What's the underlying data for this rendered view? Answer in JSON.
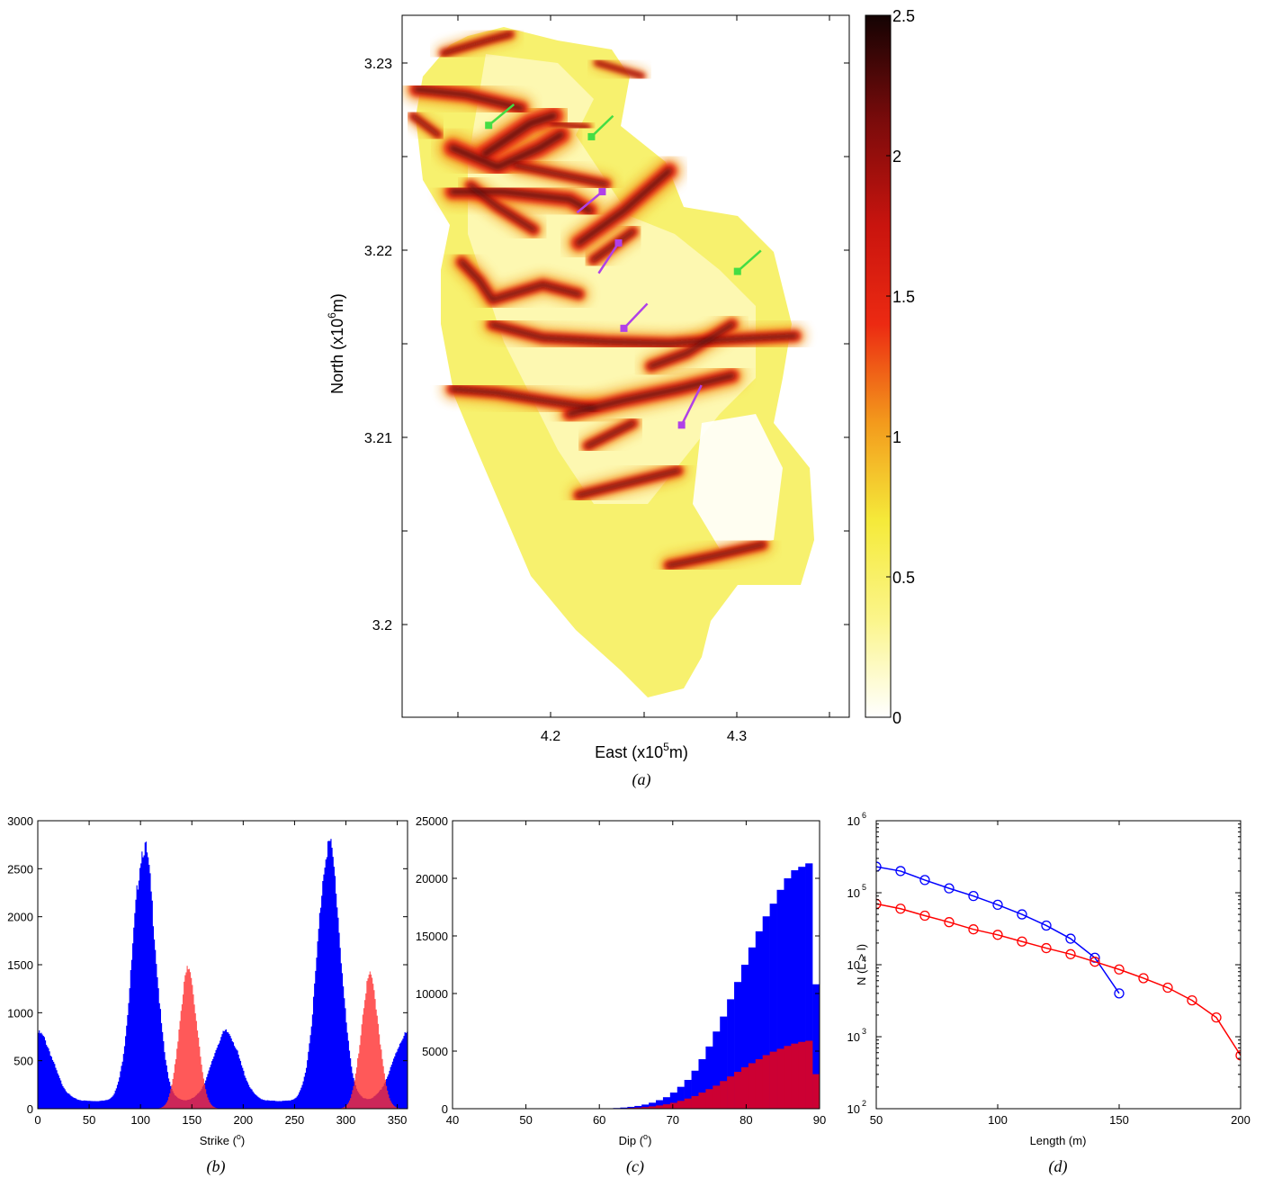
{
  "panel_a": {
    "caption": "(a)",
    "x_tick_labels": [
      "4.2",
      "4.3"
    ],
    "y_tick_labels": [
      "3.23",
      "3.22",
      "3.21",
      "3.2"
    ],
    "xlabel_base": "East (x10",
    "xlabel_exp": "5",
    "xlabel_tail": "m)",
    "ylabel_base": "North (x10",
    "ylabel_exp": "6",
    "ylabel_tail": "m)",
    "colorbar_labels": [
      "2.5",
      "2",
      "1.5",
      "1",
      "0.5",
      "0"
    ],
    "colormap": [
      "#ffffff",
      "#fbf58a",
      "#f5ea3a",
      "#f39a1c",
      "#ec2a12",
      "#c9140e",
      "#7a0b0b",
      "#140303"
    ]
  },
  "panel_b": {
    "caption": "(b)",
    "xlabel": "Strike (",
    "xlabel_unit": "o",
    "xlabel_close": ")",
    "x_tick_labels": [
      "0",
      "50",
      "100",
      "150",
      "200",
      "250",
      "300",
      "350"
    ],
    "y_tick_labels": [
      "0",
      "500",
      "1000",
      "1500",
      "2000",
      "2500",
      "3000"
    ]
  },
  "panel_c": {
    "caption": "(c)",
    "xlabel": "Dip (",
    "xlabel_unit": "o",
    "xlabel_close": ")",
    "x_tick_labels": [
      "40",
      "50",
      "60",
      "70",
      "80",
      "90"
    ],
    "y_tick_labels": [
      "0",
      "5000",
      "10000",
      "15000",
      "20000",
      "25000"
    ]
  },
  "panel_d": {
    "caption": "(d)",
    "xlabel": "Length (m)",
    "ylabel": "N (L > l)",
    "x_tick_labels": [
      "50",
      "100",
      "150",
      "200"
    ],
    "y_tick_base": "10",
    "y_tick_exps": [
      "2",
      "3",
      "4",
      "5",
      "6"
    ]
  },
  "chart_data": [
    {
      "type": "heatmap",
      "panel": "a",
      "xlabel": "East (x10^5m)",
      "ylabel": "North (x10^6m)",
      "xlim": [
        4.112,
        4.36
      ],
      "ylim": [
        3.1955,
        3.2325
      ],
      "colorbar_range": [
        0,
        2.5
      ],
      "colors": {
        "blue": "#0000ff",
        "red": "#ff0000",
        "green_marker": "#44dd44",
        "purple_marker": "#b040e8"
      },
      "lineaments": [
        {
          "x": [
            4.12,
            4.148,
            4.178
          ],
          "y": [
            3.2286,
            3.2283,
            3.2276
          ],
          "w": 1.3
        },
        {
          "x": [
            4.118,
            4.132
          ],
          "y": [
            3.2272,
            3.2262
          ],
          "w": 0.8
        },
        {
          "x": [
            4.135,
            4.16,
            4.172
          ],
          "y": [
            3.2305,
            3.2312,
            3.2315
          ],
          "w": 0.8
        },
        {
          "x": [
            4.158,
            4.183,
            4.196
          ],
          "y": [
            3.2252,
            3.2268,
            3.2272
          ],
          "w": 1.7
        },
        {
          "x": [
            4.14,
            4.165,
            4.188,
            4.2
          ],
          "y": [
            3.2255,
            3.2245,
            3.2255,
            3.2262
          ],
          "w": 1.6
        },
        {
          "x": [
            4.14,
            4.168,
            4.205,
            4.216
          ],
          "y": [
            3.2232,
            3.2232,
            3.2228,
            3.2222
          ],
          "w": 1.4
        },
        {
          "x": [
            4.15,
            4.165,
            4.185
          ],
          "y": [
            3.2235,
            3.2224,
            3.2212
          ],
          "w": 1.1
        },
        {
          "x": [
            4.175,
            4.2,
            4.225
          ],
          "y": [
            3.2246,
            3.2241,
            3.2236
          ],
          "w": 1.0
        },
        {
          "x": [
            4.21,
            4.235,
            4.26
          ],
          "y": [
            3.2205,
            3.2222,
            3.2243
          ],
          "w": 1.4
        },
        {
          "x": [
            4.218,
            4.24
          ],
          "y": [
            3.2196,
            3.2211
          ],
          "w": 1.0
        },
        {
          "x": [
            4.145,
            4.155,
            4.162,
            4.19,
            4.21
          ],
          "y": [
            3.2195,
            3.2185,
            3.2175,
            3.2183,
            3.2178
          ],
          "w": 1.1
        },
        {
          "x": [
            4.162,
            4.19,
            4.225,
            4.26,
            4.29,
            4.33
          ],
          "y": [
            3.2162,
            3.2155,
            3.2153,
            3.2152,
            3.2154,
            3.2156
          ],
          "w": 1.1
        },
        {
          "x": [
            4.25,
            4.27,
            4.295
          ],
          "y": [
            3.214,
            3.2147,
            3.2162
          ],
          "w": 1.1
        },
        {
          "x": [
            4.14,
            4.165,
            4.19,
            4.218
          ],
          "y": [
            3.2128,
            3.2126,
            3.2122,
            3.2118
          ],
          "w": 1.1
        },
        {
          "x": [
            4.205,
            4.235,
            4.265,
            4.295
          ],
          "y": [
            3.2115,
            3.2122,
            3.2128,
            3.2135
          ],
          "w": 1.3
        },
        {
          "x": [
            4.215,
            4.24
          ],
          "y": [
            3.2098,
            3.211
          ],
          "w": 1.0
        },
        {
          "x": [
            4.21,
            4.235,
            4.265
          ],
          "y": [
            3.2072,
            3.2078,
            3.2085
          ],
          "w": 1.0
        },
        {
          "x": [
            4.26,
            4.285,
            4.312
          ],
          "y": [
            3.2035,
            3.204,
            3.2046
          ],
          "w": 1.0
        },
        {
          "x": [
            4.22,
            4.245
          ],
          "y": [
            3.23,
            3.2293
          ],
          "w": 0.6
        },
        {
          "x": [
            4.195,
            4.215
          ],
          "y": [
            3.2268,
            3.2266
          ],
          "w": 0.6
        }
      ],
      "markers": [
        {
          "color": "green",
          "x": 4.16,
          "y": 3.2267,
          "dx": 0.014,
          "dy": 0.0011
        },
        {
          "color": "green",
          "x": 4.217,
          "y": 3.2261,
          "dx": 0.012,
          "dy": 0.0011
        },
        {
          "color": "purple",
          "x": 4.223,
          "y": 3.2232,
          "dx": -0.014,
          "dy": -0.0011
        },
        {
          "color": "purple",
          "x": 4.232,
          "y": 3.2205,
          "dx": -0.011,
          "dy": -0.0016
        },
        {
          "color": "green",
          "x": 4.298,
          "y": 3.219,
          "dx": 0.013,
          "dy": 0.0011
        },
        {
          "color": "purple",
          "x": 4.235,
          "y": 3.216,
          "dx": 0.013,
          "dy": 0.0013
        },
        {
          "color": "purple",
          "x": 4.267,
          "y": 3.2109,
          "dx": 0.011,
          "dy": 0.0021
        }
      ]
    },
    {
      "type": "bar",
      "panel": "b",
      "xlabel": "Strike (o)",
      "xlim": [
        0,
        360
      ],
      "ylim": [
        0,
        3000
      ],
      "series": [
        {
          "color": "#0000ff",
          "peaks": [
            {
              "mu": 103,
              "sigma": 11,
              "amp": 2650
            },
            {
              "mu": 283,
              "sigma": 11,
              "amp": 2680
            },
            {
              "mu": 183,
              "sigma": 13,
              "amp": 720
            },
            {
              "mu": 0,
              "sigma": 14,
              "amp": 710
            },
            {
              "mu": 360,
              "sigma": 14,
              "amp": 710
            }
          ],
          "baseline": 80
        },
        {
          "color": "#ff3030",
          "peaks": [
            {
              "mu": 146,
              "sigma": 8.5,
              "amp": 1450
            },
            {
              "mu": 323,
              "sigma": 8.5,
              "amp": 1380
            }
          ],
          "baseline": 0
        }
      ]
    },
    {
      "type": "bar",
      "panel": "c",
      "xlabel": "Dip (o)",
      "xlim": [
        40,
        90
      ],
      "ylim": [
        0,
        25000
      ],
      "bin_width": 1,
      "series": [
        {
          "color": "#0000ff",
          "values": [
            5,
            10,
            20,
            35,
            60,
            100,
            160,
            240,
            360,
            520,
            740,
            1000,
            1400,
            1900,
            2500,
            3300,
            4300,
            5400,
            6700,
            8000,
            9500,
            11000,
            12500,
            14000,
            15400,
            16700,
            17800,
            19000,
            20000,
            20700,
            21000,
            21300,
            10800
          ]
        },
        {
          "color": "#cc0033",
          "values": [
            2,
            4,
            8,
            14,
            25,
            40,
            65,
            95,
            140,
            200,
            280,
            380,
            510,
            680,
            880,
            1100,
            1400,
            1700,
            2000,
            2400,
            2800,
            3200,
            3600,
            3950,
            4300,
            4650,
            4950,
            5200,
            5450,
            5650,
            5800,
            5900,
            3000
          ]
        }
      ],
      "x_start": 58
    },
    {
      "type": "line",
      "panel": "d",
      "xlabel": "Length (m)",
      "ylabel": "N (L > l)",
      "xlim": [
        50,
        200
      ],
      "ylim": [
        100,
        1000000
      ],
      "yscale": "log",
      "series": [
        {
          "color": "#0000ff",
          "x": [
            50,
            60,
            70,
            80,
            90,
            100,
            110,
            120,
            130,
            140,
            150
          ],
          "y": [
            230000,
            200000,
            150000,
            115000,
            90000,
            68000,
            50000,
            35000,
            23000,
            12500,
            4000
          ]
        },
        {
          "color": "#ff0000",
          "x": [
            50,
            60,
            70,
            80,
            90,
            100,
            110,
            120,
            130,
            140,
            150,
            160,
            170,
            180,
            190,
            200
          ],
          "y": [
            70000,
            60000,
            48000,
            39000,
            31000,
            26000,
            21000,
            17000,
            14000,
            11000,
            8600,
            6500,
            4800,
            3200,
            1850,
            550
          ]
        }
      ]
    }
  ]
}
